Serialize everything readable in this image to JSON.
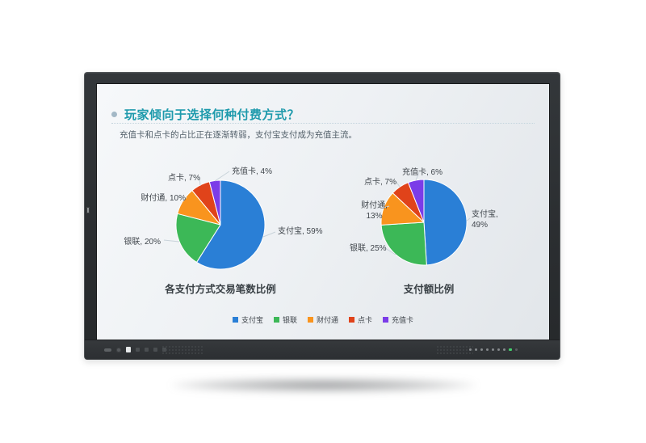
{
  "slide": {
    "title": "玩家倾向于选择何种付费方式？",
    "subtitle": "充值卡和点卡的占比正在逐渐转弱，支付宝支付成为充值主流。"
  },
  "chart_data": [
    {
      "type": "pie",
      "title": "各支付方式交易笔数比例",
      "labels": [
        "支付宝",
        "银联",
        "财付通",
        "点卡",
        "充值卡"
      ],
      "values": [
        59,
        20,
        10,
        7,
        4
      ],
      "unit": "%",
      "label_format": "{name}, {value}%",
      "colors": [
        "#2a7fd6",
        "#3cb857",
        "#f9941e",
        "#e0431a",
        "#7b3ce8"
      ],
      "legend_position": "bottom",
      "start_angle": "12-oclock-clockwise"
    },
    {
      "type": "pie",
      "title": "支付额比例",
      "labels": [
        "支付宝",
        "银联",
        "财付通",
        "点卡",
        "充值卡"
      ],
      "values": [
        49,
        25,
        13,
        7,
        6
      ],
      "unit": "%",
      "label_format": "{name}, {value}%",
      "colors": [
        "#2a7fd6",
        "#3cb857",
        "#f9941e",
        "#e0431a",
        "#7b3ce8"
      ],
      "legend_position": "bottom",
      "start_angle": "12-oclock-clockwise"
    }
  ],
  "legend": {
    "items": [
      "支付宝",
      "银联",
      "财付通",
      "点卡",
      "充值卡"
    ]
  },
  "monitor": {
    "power_led_color": "#43cf6d"
  }
}
